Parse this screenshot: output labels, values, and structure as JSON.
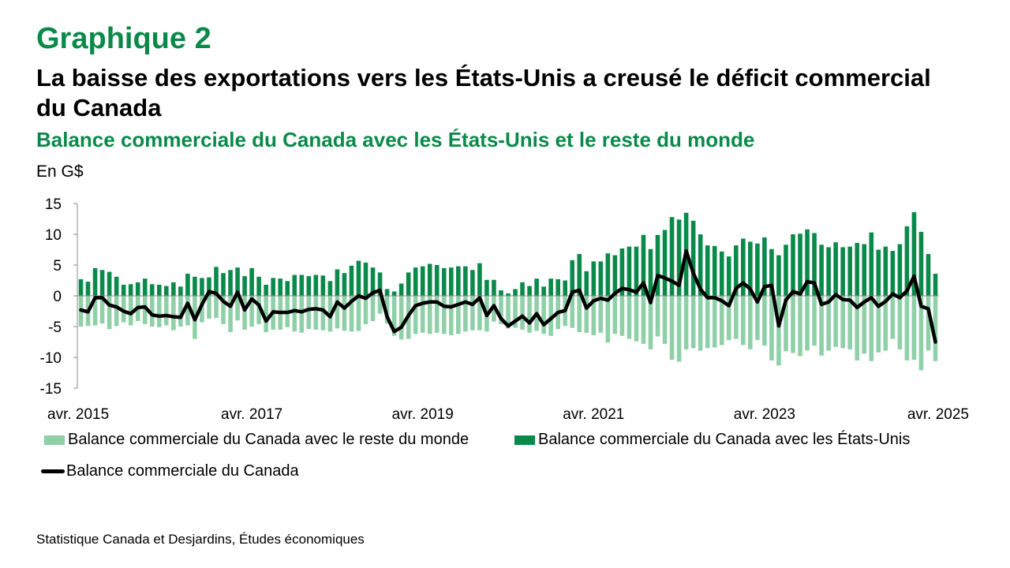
{
  "header": {
    "kicker": "Graphique 2",
    "title": "La baisse des exportations vers les États-Unis a creusé le déficit commercial du Canada",
    "subtitle": "Balance commerciale du Canada avec les États-Unis et le reste du monde",
    "unit": "En G$"
  },
  "footer": {
    "source": "Statistique Canada et Desjardins, Études économiques"
  },
  "colors": {
    "rest_of_world": "#8fd0a8",
    "united_states": "#0a8a4a",
    "total": "#000000"
  },
  "chart_data": {
    "type": "bar",
    "stacked": true,
    "ylabel": "En G$",
    "ylim": [
      -15,
      15
    ],
    "yticks": [
      15,
      10,
      5,
      0,
      -5,
      -10,
      -15
    ],
    "xtick_labels": [
      "avr. 2015",
      "avr. 2017",
      "avr. 2019",
      "avr. 2021",
      "avr. 2023",
      "avr. 2025"
    ],
    "legend_position": "bottom",
    "grid": false,
    "series": [
      {
        "name": "Balance commerciale du Canada avec le reste du monde",
        "type": "bar",
        "values": [
          -5.0,
          -4.9,
          -4.8,
          -4.5,
          -5.4,
          -4.9,
          -4.3,
          -4.8,
          -4.1,
          -4.6,
          -5.0,
          -5.1,
          -4.8,
          -5.6,
          -5.0,
          -4.8,
          -7.0,
          -4.3,
          -3.7,
          -3.6,
          -4.6,
          -5.9,
          -4.0,
          -5.5,
          -5.0,
          -4.6,
          -5.9,
          -5.5,
          -5.5,
          -5.1,
          -5.8,
          -6.0,
          -5.4,
          -5.5,
          -5.6,
          -5.8,
          -5.3,
          -5.7,
          -5.8,
          -5.7,
          -4.6,
          -4.1,
          -2.9,
          -4.5,
          -6.5,
          -7.1,
          -7.0,
          -6.2,
          -6.0,
          -6.2,
          -6.0,
          -6.2,
          -6.4,
          -6.2,
          -5.8,
          -5.6,
          -5.6,
          -5.8,
          -4.2,
          -4.6,
          -5.3,
          -5.2,
          -5.5,
          -6.0,
          -5.7,
          -6.2,
          -6.5,
          -5.4,
          -4.9,
          -5.2,
          -5.9,
          -6.0,
          -6.4,
          -6.0,
          -7.6,
          -6.2,
          -6.5,
          -7.0,
          -7.4,
          -7.8,
          -8.7,
          -6.6,
          -7.8,
          -10.4,
          -10.7,
          -8.7,
          -8.5,
          -8.9,
          -8.5,
          -8.4,
          -8.0,
          -7.2,
          -7.0,
          -8.0,
          -8.7,
          -7.2,
          -8.1,
          -10.5,
          -11.3,
          -9.0,
          -9.3,
          -9.8,
          -8.9,
          -8.1,
          -9.7,
          -8.9,
          -8.3,
          -8.5,
          -8.7,
          -10.5,
          -9.4,
          -10.6,
          -9.2,
          -8.9,
          -7.0,
          -8.7,
          -10.5,
          -10.4,
          -12.1,
          -8.9,
          -10.6
        ]
      },
      {
        "name": "Balance commerciale du Canada avec les États-Unis",
        "type": "bar",
        "values": [
          2.7,
          2.3,
          4.5,
          4.2,
          3.9,
          3.1,
          1.8,
          1.9,
          2.2,
          2.8,
          1.9,
          1.8,
          1.6,
          2.2,
          1.5,
          3.6,
          3.1,
          2.9,
          3.0,
          4.7,
          3.7,
          4.2,
          4.6,
          3.2,
          4.5,
          3.1,
          1.8,
          2.9,
          2.8,
          2.4,
          3.4,
          3.4,
          3.2,
          3.4,
          3.3,
          2.4,
          4.3,
          3.7,
          4.9,
          5.7,
          5.4,
          4.6,
          3.8,
          1.1,
          0.7,
          2.0,
          3.8,
          4.6,
          4.8,
          5.2,
          5.0,
          4.5,
          4.6,
          4.8,
          4.8,
          4.2,
          5.3,
          2.6,
          2.6,
          0.9,
          0.4,
          1.1,
          2.2,
          1.6,
          2.8,
          1.5,
          2.8,
          2.7,
          2.5,
          5.8,
          6.8,
          4.0,
          5.6,
          5.6,
          6.9,
          6.6,
          7.7,
          8.0,
          8.0,
          9.9,
          7.6,
          9.9,
          10.7,
          12.8,
          12.4,
          13.5,
          12.2,
          10.0,
          8.2,
          8.1,
          7.2,
          6.4,
          8.2,
          9.3,
          8.8,
          8.5,
          9.5,
          7.6,
          6.6,
          8.3,
          10.0,
          10.1,
          10.8,
          10.2,
          8.3,
          7.9,
          8.7,
          7.9,
          8.0,
          8.6,
          8.4,
          10.3,
          7.5,
          8.0,
          7.3,
          8.4,
          11.3,
          13.6,
          10.4,
          6.8,
          3.6
        ]
      },
      {
        "name": "Balance commerciale du Canada",
        "type": "line",
        "values": [
          -2.3,
          -2.6,
          -0.3,
          -0.3,
          -1.5,
          -1.8,
          -2.5,
          -2.9,
          -1.9,
          -1.8,
          -3.1,
          -3.3,
          -3.2,
          -3.4,
          -3.5,
          -1.2,
          -3.9,
          -1.4,
          0.7,
          0.4,
          -0.9,
          -1.7,
          0.6,
          -2.3,
          -0.5,
          -1.5,
          -4.1,
          -2.6,
          -2.7,
          -2.7,
          -2.4,
          -2.6,
          -2.2,
          -2.1,
          -2.3,
          -3.4,
          -1.0,
          -2.0,
          -0.9,
          0.0,
          -0.4,
          0.5,
          0.9,
          -3.4,
          -5.8,
          -5.1,
          -3.2,
          -1.6,
          -1.2,
          -1.0,
          -1.0,
          -1.7,
          -1.8,
          -1.4,
          -1.0,
          -1.4,
          -0.3,
          -3.2,
          -1.6,
          -3.7,
          -4.9,
          -4.1,
          -3.3,
          -4.4,
          -2.9,
          -4.7,
          -3.7,
          -2.7,
          -2.4,
          0.6,
          0.9,
          -2.0,
          -0.8,
          -0.4,
          -0.7,
          0.4,
          1.2,
          1.0,
          0.6,
          2.1,
          -1.1,
          3.3,
          2.9,
          2.4,
          1.7,
          7.3,
          3.7,
          1.1,
          -0.3,
          -0.3,
          -0.8,
          -1.6,
          1.2,
          2.1,
          1.1,
          -1.0,
          1.5,
          1.7,
          -4.9,
          -0.7,
          0.7,
          0.3,
          2.3,
          2.1,
          -1.4,
          -1.0,
          0.2,
          -0.6,
          -0.7,
          -1.9,
          -1.0,
          -0.3,
          -1.7,
          -0.9,
          0.3,
          -0.3,
          0.8,
          3.2,
          -1.7,
          -2.1,
          -7.5
        ]
      }
    ]
  }
}
